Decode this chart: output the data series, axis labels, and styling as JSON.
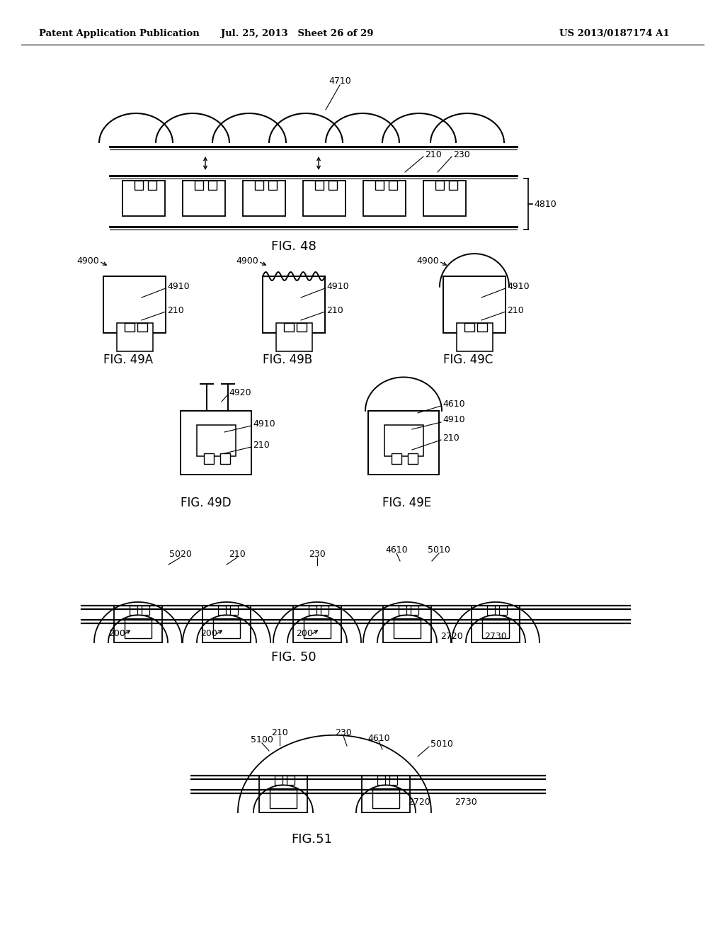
{
  "header_left": "Patent Application Publication",
  "header_mid": "Jul. 25, 2013   Sheet 26 of 29",
  "header_right": "US 2013/0187174 A1",
  "bg_color": "#ffffff",
  "lc": "#000000"
}
